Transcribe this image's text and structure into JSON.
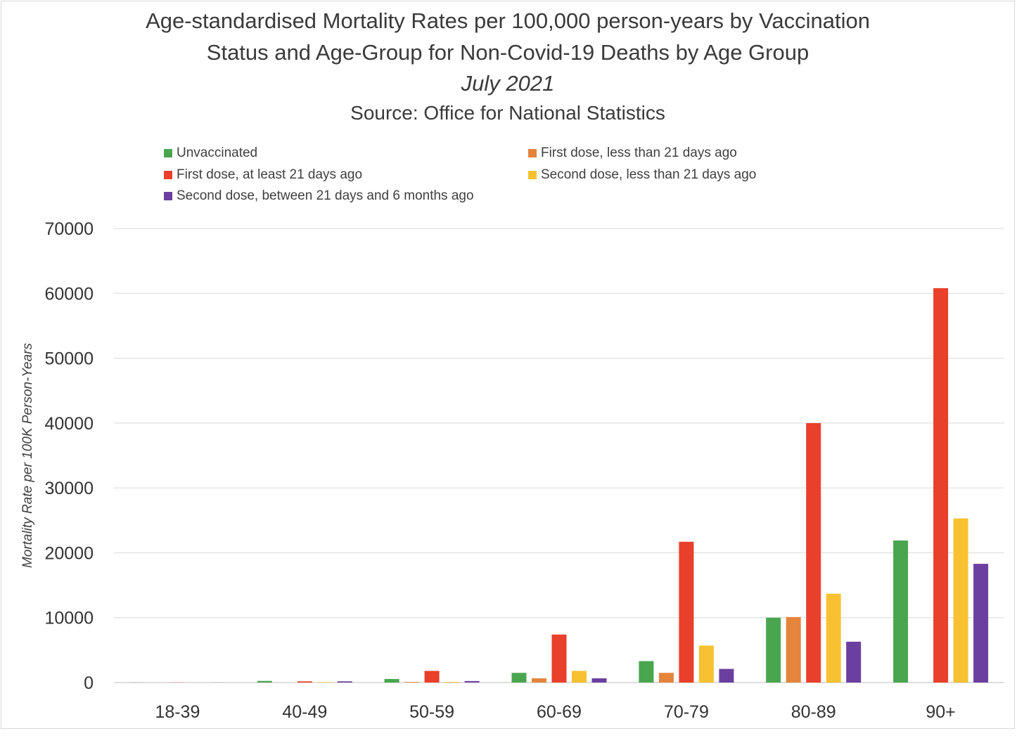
{
  "chart_data": {
    "type": "bar",
    "title": "Age-standardised Mortality Rates per 100,000 person-years by Vaccination",
    "title_line2": "Status and Age-Group for Non-Covid-19 Deaths by Age Group",
    "subtitle": "July 2021",
    "source": "Source: Office for National Statistics",
    "xlabel": "",
    "ylabel": "Mortality Rate per 100K Person-Years",
    "ylim": [
      0,
      70000
    ],
    "yticks": [
      0,
      10000,
      20000,
      30000,
      40000,
      50000,
      60000,
      70000
    ],
    "ytick_labels": [
      "0",
      "10000",
      "20000",
      "30000",
      "40000",
      "50000",
      "60000",
      "70000"
    ],
    "grid": true,
    "legend_position": "top",
    "categories": [
      "18-39",
      "40-49",
      "50-59",
      "60-69",
      "70-79",
      "80-89",
      "90+"
    ],
    "series": [
      {
        "name": "Unvaccinated",
        "color": "#4aa54f",
        "values": [
          20,
          250,
          550,
          1500,
          3300,
          10000,
          21900
        ]
      },
      {
        "name": "First dose, less than 21 days ago",
        "color": "#e5843d",
        "values": [
          0,
          0,
          100,
          650,
          1500,
          10100,
          0
        ]
      },
      {
        "name": "First dose, at least 21 days ago",
        "color": "#e8402b",
        "values": [
          20,
          180,
          1800,
          7400,
          21700,
          40000,
          60800
        ]
      },
      {
        "name": "Second dose, less than 21 days ago",
        "color": "#f8c131",
        "values": [
          0,
          80,
          100,
          1800,
          5700,
          13700,
          25300
        ]
      },
      {
        "name": "Second dose, between 21 days and 6 months ago",
        "color": "#6b3fa0",
        "values": [
          10,
          180,
          230,
          650,
          2100,
          6300,
          18300
        ]
      }
    ]
  }
}
